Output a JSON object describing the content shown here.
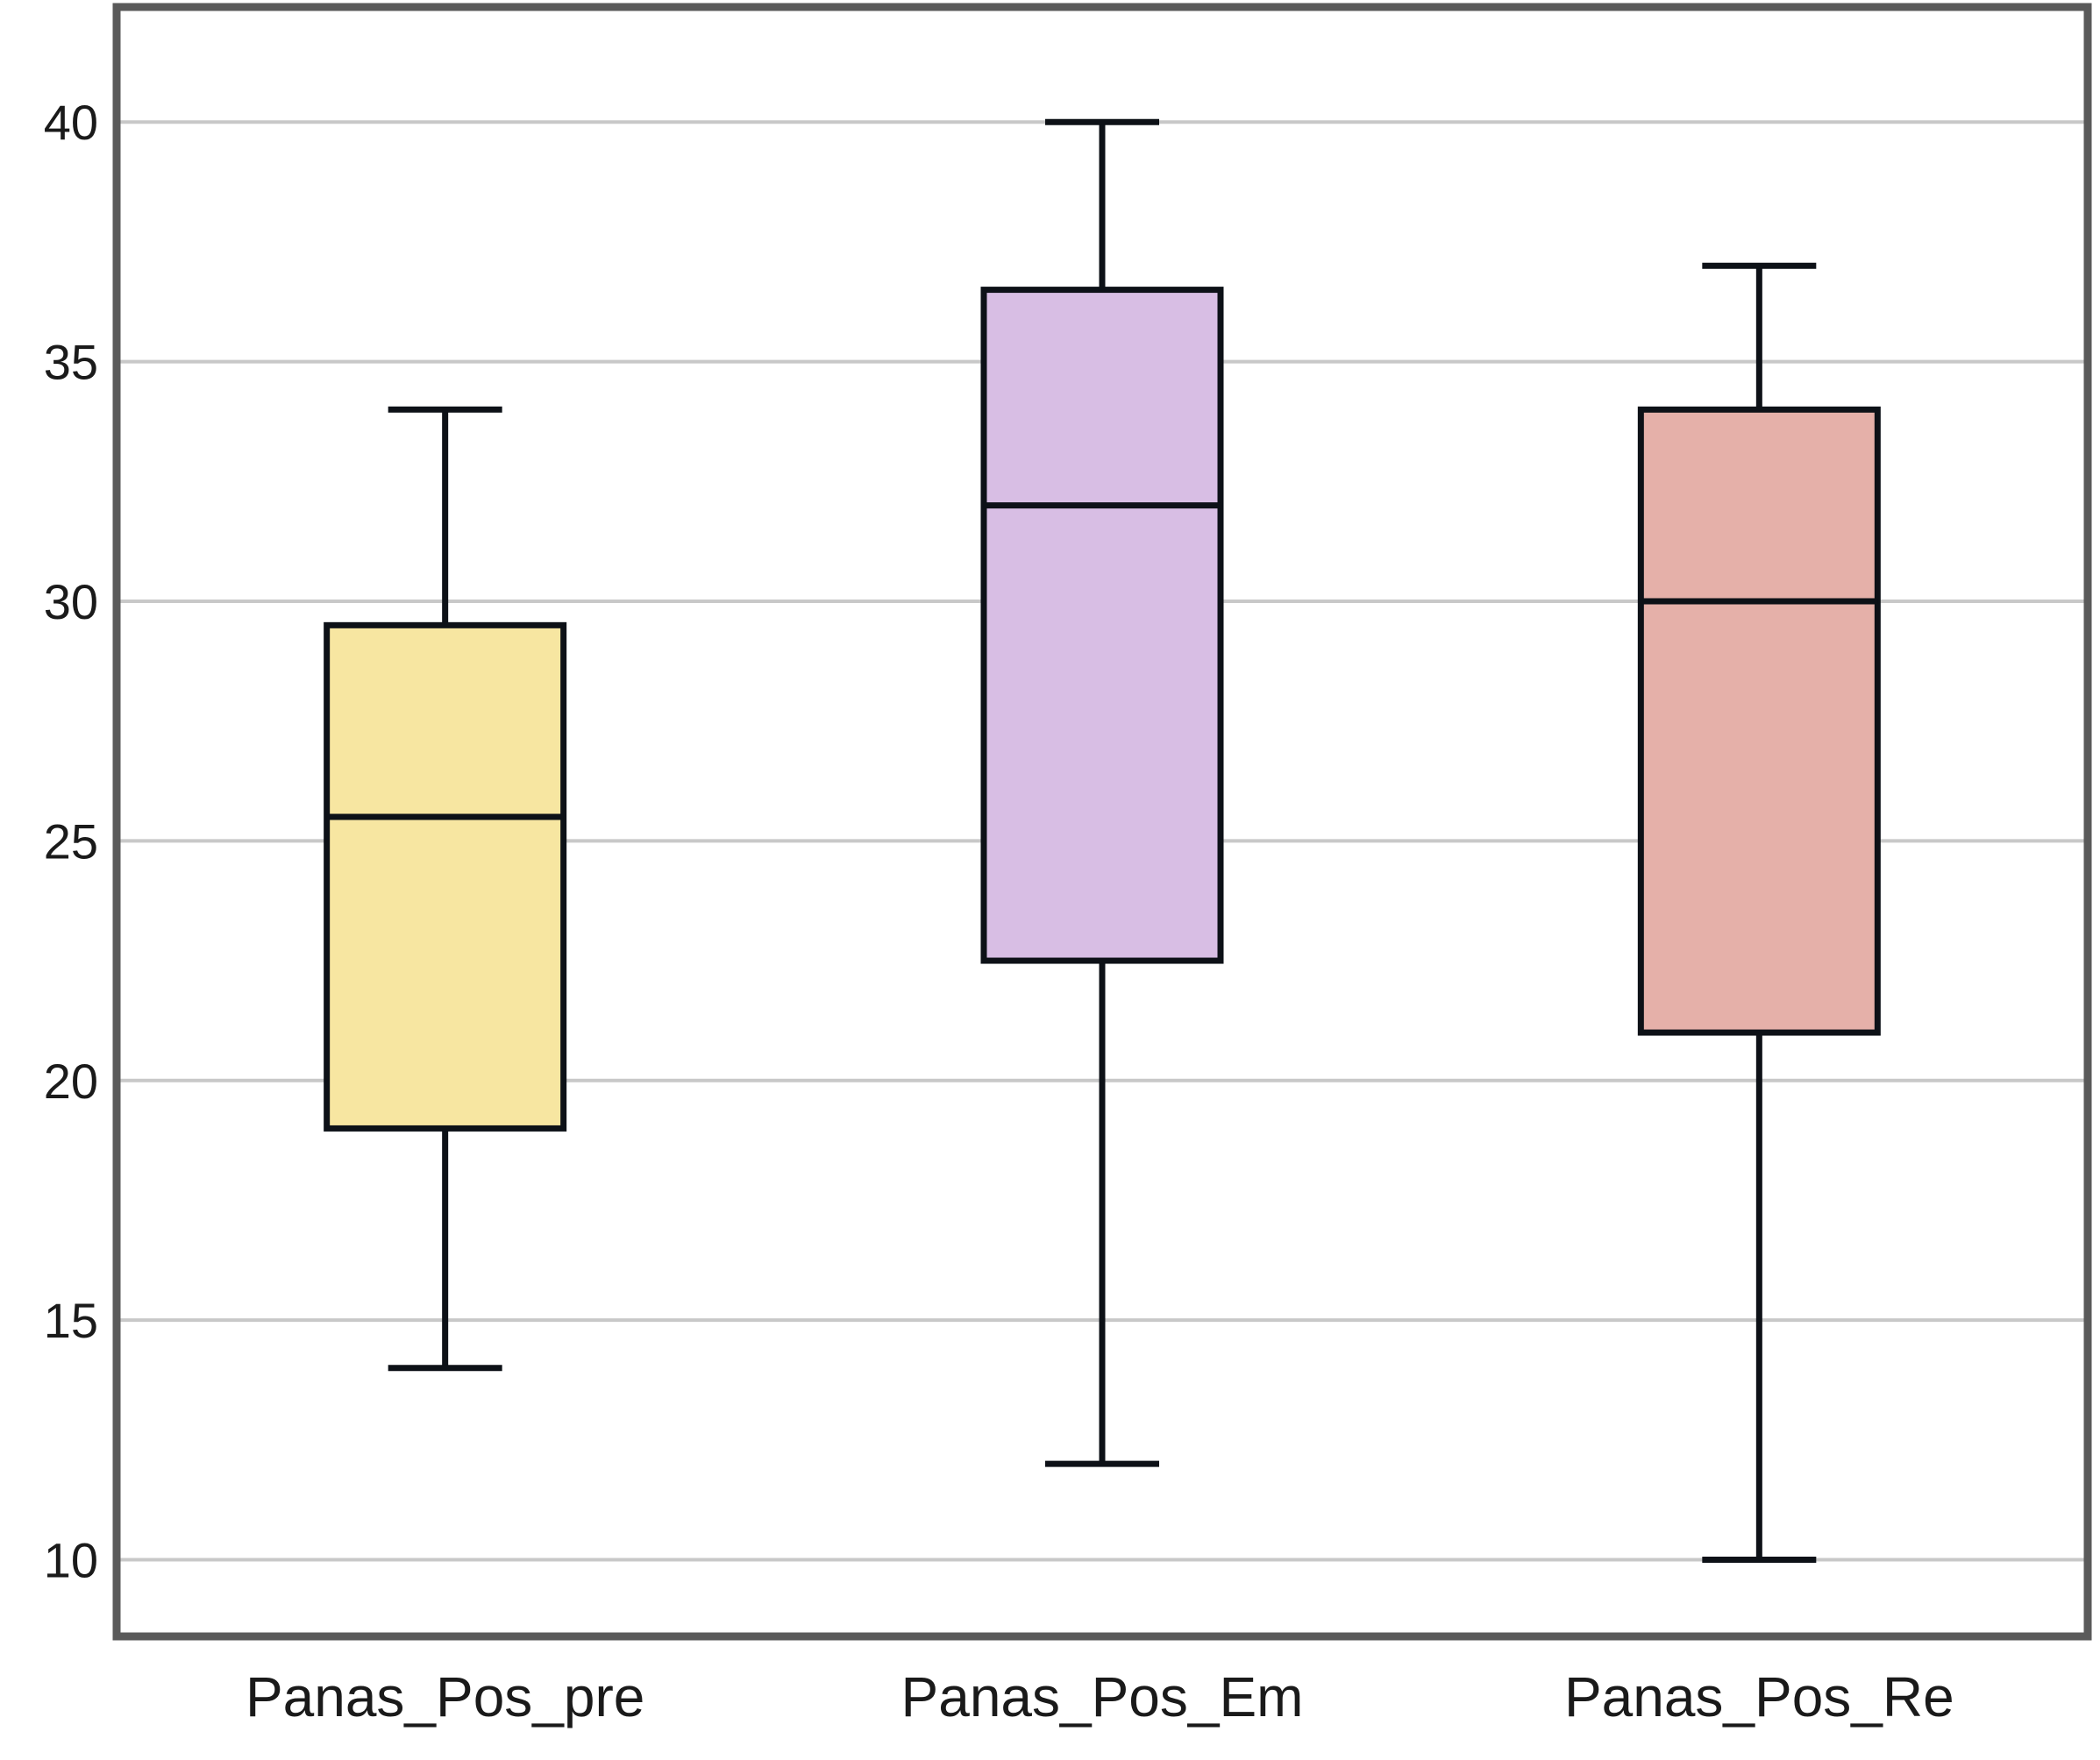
{
  "chart_data": {
    "type": "boxplot",
    "title": "",
    "xlabel": "",
    "ylabel": "",
    "ylim": [
      8.4,
      42.4
    ],
    "yticks": [
      10,
      15,
      20,
      25,
      30,
      35,
      40
    ],
    "grid": "horizontal",
    "legend": "none",
    "categories": [
      "Panas_Pos_pre",
      "Panas_Pos_Em",
      "Panas_Pos_Re"
    ],
    "boxes": [
      {
        "min": 14,
        "q1": 19,
        "median": 25.5,
        "q3": 29.5,
        "max": 34,
        "color": "#f7e6a1"
      },
      {
        "min": 12,
        "q1": 22.5,
        "median": 32,
        "q3": 36.5,
        "max": 40,
        "color": "#d8bee4"
      },
      {
        "min": 10,
        "q1": 21,
        "median": 30,
        "q3": 34,
        "max": 37,
        "color": "#e5b0a9"
      }
    ],
    "colors": {
      "gridline": "#c8c8c8",
      "frame": "#5a5a5a",
      "stroke": "#0d1117"
    }
  }
}
